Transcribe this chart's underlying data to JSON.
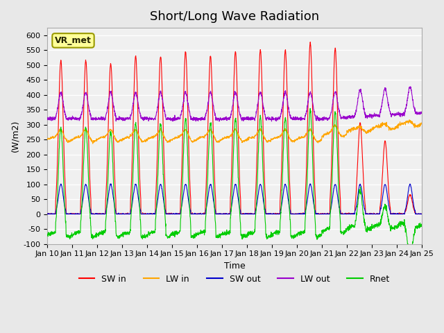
{
  "title": "Short/Long Wave Radiation",
  "ylabel": "(W/m2)",
  "xlabel": "Time",
  "annotation": "VR_met",
  "ylim": [
    -100,
    625
  ],
  "n_days": 15,
  "background_color": "#e8e8e8",
  "plot_bg_color": "#f0f0f0",
  "grid_color": "white",
  "colors": {
    "SW_in": "#ff0000",
    "LW_in": "#ffa500",
    "SW_out": "#0000cc",
    "LW_out": "#9900cc",
    "Rnet": "#00cc00"
  },
  "legend_labels": [
    "SW in",
    "LW in",
    "SW out",
    "LW out",
    "Rnet"
  ],
  "xtick_labels": [
    "Jan 10",
    "Jan 11",
    "Jan 12",
    "Jan 13",
    "Jan 14",
    "Jan 15",
    "Jan 16",
    "Jan 17",
    "Jan 18",
    "Jan 19",
    "Jan 20",
    "Jan 21",
    "Jan 22",
    "Jan 23",
    "Jan 24",
    "Jan 25"
  ],
  "ytick_values": [
    -100,
    -50,
    0,
    50,
    100,
    150,
    200,
    250,
    300,
    350,
    400,
    450,
    500,
    550,
    600
  ],
  "n_points_per_day": 144,
  "SW_in_peaks": [
    515,
    515,
    505,
    530,
    530,
    545,
    530,
    545,
    550,
    550,
    575,
    555,
    305,
    245,
    65
  ],
  "SW_out_peak": 100.0,
  "LW_out_base": 320.0,
  "LW_out_peak_increase": 88.0,
  "title_fontsize": 13,
  "tick_fontsize": 8,
  "label_fontsize": 9,
  "legend_fontsize": 9
}
